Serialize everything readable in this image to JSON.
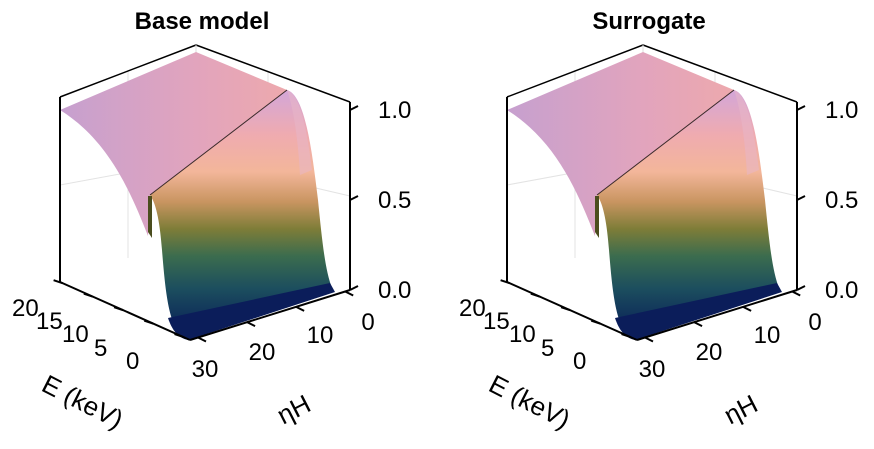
{
  "chart_data": [
    {
      "type": "surface3d",
      "title": "Base model",
      "xlabel": "E (keV)",
      "ylabel": "ηH",
      "zlabel": "",
      "x_ticks": [
        "20",
        "15",
        "10",
        "5",
        "0"
      ],
      "y_ticks": [
        "30",
        "20",
        "10",
        "0"
      ],
      "z_ticks": [
        "1.0",
        "0.5",
        "0.0"
      ],
      "xlim": [
        0,
        20
      ],
      "ylim": [
        0,
        35
      ],
      "zlim": [
        0,
        1.1
      ],
      "colormap": [
        "#0b1d5a",
        "#14455c",
        "#2e6b55",
        "#6b7f3a",
        "#a88a48",
        "#e2a087",
        "#f0b0a6",
        "#d6a5d6"
      ],
      "surface_samples": {
        "E_keV": [
          0,
          0.1,
          0.3,
          0.5,
          1,
          2,
          5,
          10,
          15,
          20
        ],
        "z_at_etaH_0": [
          0.0,
          0.05,
          0.45,
          0.7,
          0.85,
          0.93,
          0.98,
          1.0,
          1.0,
          1.0
        ],
        "z_at_etaH_30": [
          0.0,
          0.02,
          0.3,
          0.55,
          0.72,
          0.82,
          0.92,
          0.97,
          0.99,
          1.0
        ]
      }
    },
    {
      "type": "surface3d",
      "title": "Surrogate",
      "xlabel": "E (keV)",
      "ylabel": "ηH",
      "zlabel": "",
      "x_ticks": [
        "20",
        "15",
        "10",
        "5",
        "0"
      ],
      "y_ticks": [
        "30",
        "20",
        "10",
        "0"
      ],
      "z_ticks": [
        "1.0",
        "0.5",
        "0.0"
      ],
      "xlim": [
        0,
        20
      ],
      "ylim": [
        0,
        35
      ],
      "zlim": [
        0,
        1.1
      ],
      "colormap": [
        "#0b1d5a",
        "#14455c",
        "#2e6b55",
        "#6b7f3a",
        "#a88a48",
        "#e2a087",
        "#f0b0a6",
        "#d6a5d6"
      ],
      "surface_samples": {
        "E_keV": [
          0,
          0.1,
          0.3,
          0.5,
          1,
          2,
          5,
          10,
          15,
          20
        ],
        "z_at_etaH_0": [
          0.0,
          0.05,
          0.45,
          0.7,
          0.85,
          0.93,
          0.98,
          1.0,
          1.0,
          1.0
        ],
        "z_at_etaH_30": [
          0.0,
          0.02,
          0.3,
          0.55,
          0.72,
          0.82,
          0.92,
          0.97,
          0.99,
          1.0
        ]
      }
    }
  ]
}
